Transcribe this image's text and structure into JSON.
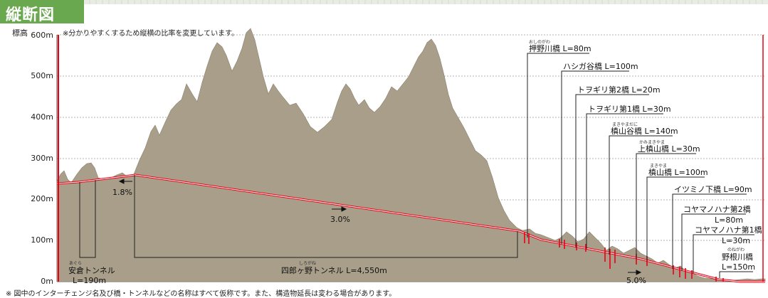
{
  "title": "縦断図",
  "y_axis_title": "標高",
  "note_top": "※分かりやすくするため縦横の比率を変更しています。",
  "footnote": "※ 図中のインターチェンジ名及び橋・トンネルなどの名称はすべて仮称です。また、構造物延長は変わる場合があります。",
  "colors": {
    "terrain": "#a89e8a",
    "road": "#e60012",
    "title_bg": "#6aa84f",
    "grid": "#999999"
  },
  "y_ticks": [
    "600m",
    "500m",
    "400m",
    "300m",
    "200m",
    "100m",
    "0m"
  ],
  "grades": [
    "1.8%",
    "3.0%",
    "5.0%"
  ],
  "tunnels": [
    {
      "ruby": "あぐら",
      "name": "安倉トンネル",
      "length": "L=190m"
    },
    {
      "ruby": "しろがね",
      "name": "四郎ヶ野トンネル L=4,550m"
    }
  ],
  "bridges": [
    {
      "ruby": "おしのがわ",
      "label": "押野川橋 L=80m"
    },
    {
      "ruby": "",
      "label": "ハシガ谷橋 L=100m"
    },
    {
      "ruby": "",
      "label": "トヲギリ第2橋 L=20m"
    },
    {
      "ruby": "",
      "label": "トヲギリ第1橋 L=30m"
    },
    {
      "ruby": "まきやまだに",
      "label": "槙山谷橋 L=140m"
    },
    {
      "ruby": "かみまきやま",
      "label": "上槙山橋 L=30m"
    },
    {
      "ruby": "まきやま",
      "label": "槙山橋 L=100m"
    },
    {
      "ruby": "",
      "label": "イツミノ下橋 L=90m"
    },
    {
      "ruby": "",
      "label": "コヤマノハナ第2橋"
    },
    {
      "ruby": "",
      "label": "L=80m"
    },
    {
      "ruby": "",
      "label": "コヤマノハナ第1橋"
    },
    {
      "ruby": "",
      "label": "L=30m"
    },
    {
      "ruby": "のねがわ",
      "label": "野根川橋"
    },
    {
      "ruby": "",
      "label": "L=150m"
    }
  ]
}
